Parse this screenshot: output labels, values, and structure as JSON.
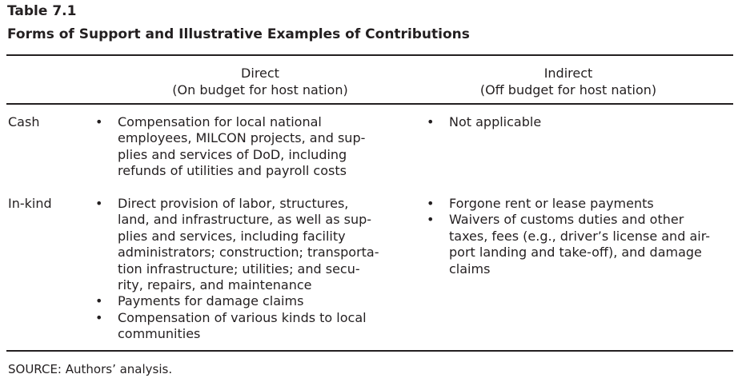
{
  "table": {
    "number": "Table 7.1",
    "title": "Forms of Support and Illustrative Examples of Contributions"
  },
  "columns": {
    "direct": {
      "label": "Direct",
      "sublabel": "(On budget for host nation)"
    },
    "indirect": {
      "label": "Indirect",
      "sublabel": "(Off budget for host nation)"
    }
  },
  "rows": [
    {
      "label": "Cash",
      "direct": [
        [
          "Compensation for local national",
          "employees, MILCON projects, and sup-",
          "plies and services of DoD, including",
          "refunds of utilities and payroll costs"
        ]
      ],
      "indirect": [
        [
          "Not applicable"
        ]
      ]
    },
    {
      "label": "In-kind",
      "direct": [
        [
          "Direct provision of labor, structures,",
          "land, and infrastructure, as well as sup-",
          "plies and services, including facility",
          "administrators; construction; transporta-",
          "tion infrastructure; utilities; and secu-",
          "rity, repairs, and maintenance"
        ],
        [
          "Payments for damage claims"
        ],
        [
          "Compensation of various kinds to local",
          "communities"
        ]
      ],
      "indirect": [
        [
          "Forgone rent or lease payments"
        ],
        [
          "Waivers of customs duties and other",
          "taxes, fees (e.g., driver’s license and air-",
          "port landing and take-off), and damage",
          "claims"
        ]
      ]
    }
  ],
  "bullet_glyph": "•",
  "source": "SOURCE: Authors’ analysis."
}
